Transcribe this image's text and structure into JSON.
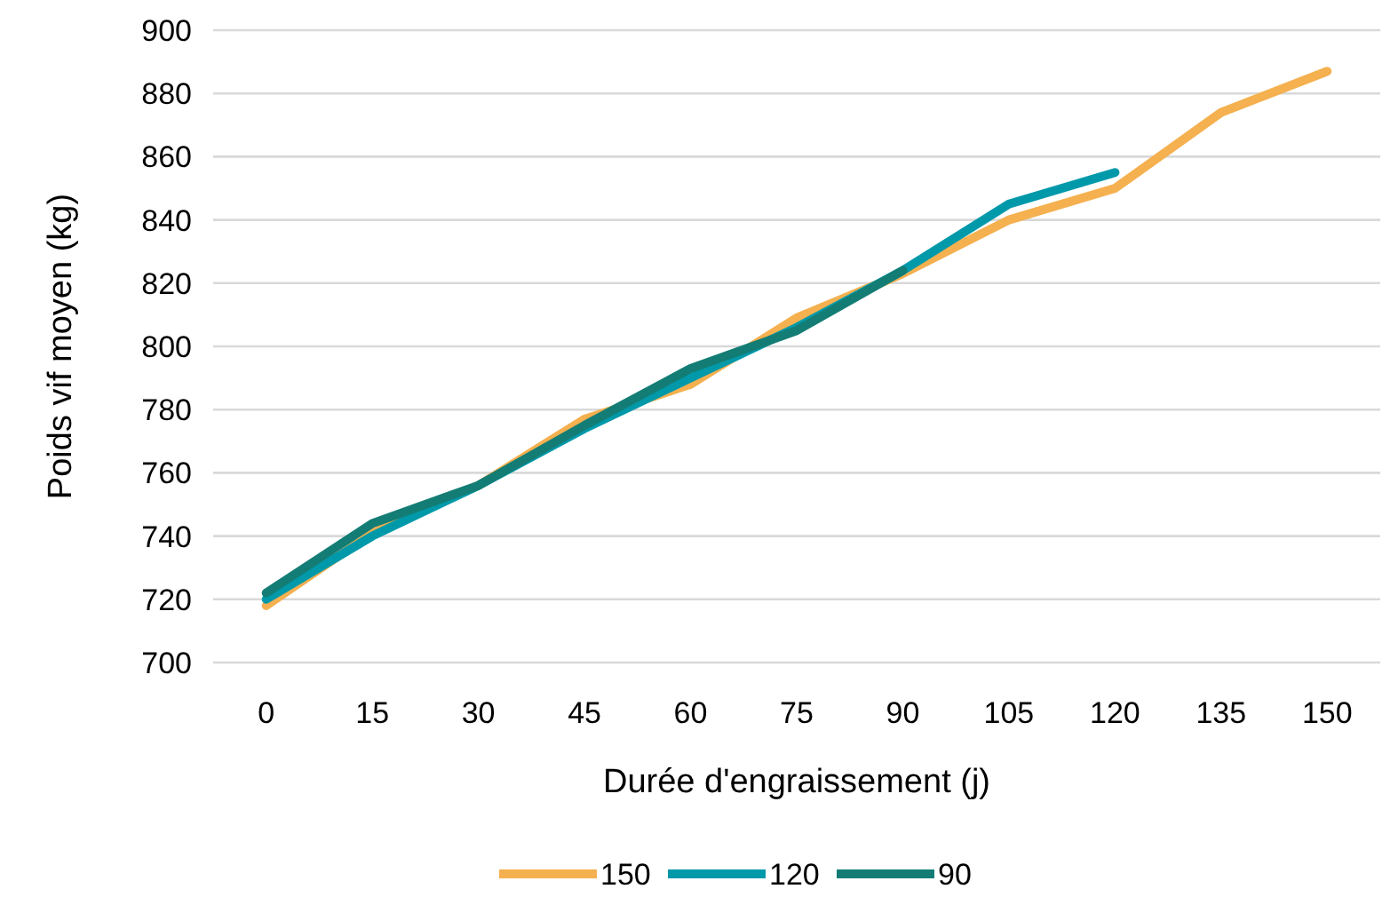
{
  "chart_data": {
    "type": "line",
    "xlabel": "Durée d'engraissement (j)",
    "ylabel": "Poids vif moyen (kg)",
    "categories": [
      "0",
      "15",
      "30",
      "45",
      "60",
      "75",
      "90",
      "105",
      "120",
      "135",
      "150"
    ],
    "series": [
      {
        "name": "150",
        "color": "#f5b04f",
        "values": [
          718,
          741,
          756,
          777,
          788,
          809,
          823,
          840,
          850,
          874,
          887
        ]
      },
      {
        "name": "120",
        "color": "#0099aa",
        "values": [
          720,
          740,
          756,
          774,
          790,
          806,
          824,
          845,
          855,
          null,
          null
        ]
      },
      {
        "name": "90",
        "color": "#137d75",
        "values": [
          722,
          744,
          756,
          775,
          793,
          805,
          824,
          null,
          null,
          null,
          null
        ]
      }
    ],
    "ylim": [
      700,
      900
    ],
    "yticks": [
      700,
      720,
      740,
      760,
      780,
      800,
      820,
      840,
      860,
      880,
      900
    ],
    "grid": "y",
    "legend": "bottom",
    "marker": "none",
    "line_style": "solid"
  }
}
